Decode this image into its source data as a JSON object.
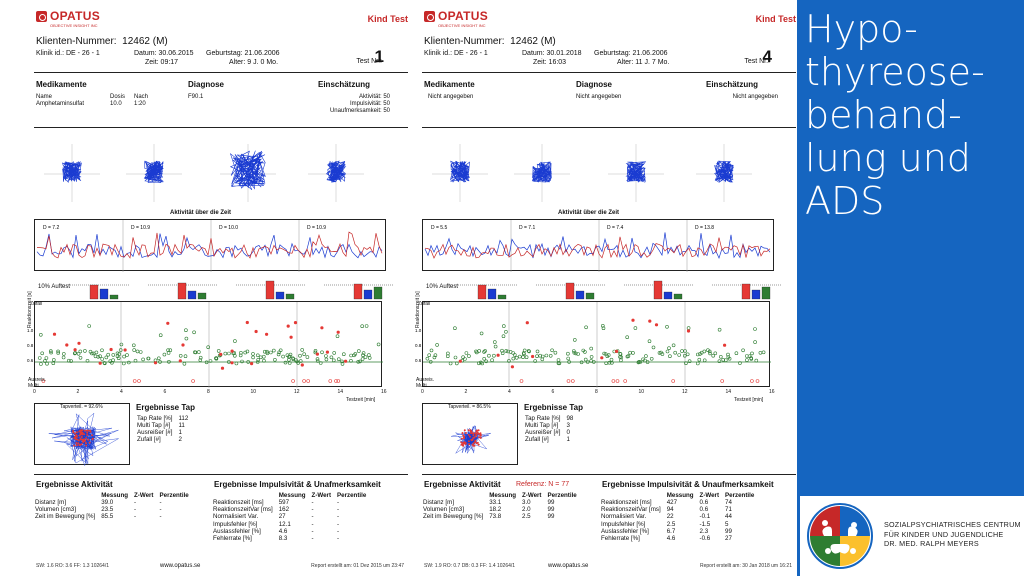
{
  "slide": {
    "title": "Hypo-\nthyreose-\nbehand-\nlung und\nADS",
    "title_lines": [
      "Hypo-",
      "thyreose-",
      "behand-",
      "lung und",
      "ADS"
    ],
    "org_lines": [
      "SOZIALPSYCHIATRISCHES CENTRUM",
      "FÜR KINDER UND JUGENDLICHE",
      "DR. MED. RALPH MEYERS"
    ],
    "accent_color": "#1565c0"
  },
  "reports": [
    {
      "brand": "OPATUS",
      "brand_sub": "OBJECTIVE INSIGHT INC",
      "kind": "Kind Test",
      "client_label": "Klienten-Nummer:",
      "client_value": "12462  (M)",
      "klinik": "Klinik id.: DE - 26 - 1",
      "datum": "Datum: 30.06.2015",
      "zeit": "Zeit: 09:17",
      "geburtstag": "Geburtstag: 21.06.2006",
      "alter": "Alter: 9 J.  0 Mo.",
      "test_nr_label": "Test Nr.:",
      "test_nr": "1",
      "med_header": "Medikamente",
      "diag_header": "Diagnose",
      "einsch_header": "Einschätzung",
      "med_cols": [
        "Name",
        "Dosis",
        "Nach"
      ],
      "med_row": [
        "Amphetaminsulfat",
        "10.0",
        "1:20"
      ],
      "diagnose": "F90.1",
      "einsch_rows": [
        "Aktivität: 50",
        "Impulsivität: 50",
        "Unaufmerksamkeit: 50"
      ],
      "activity_title": "Aktivität über die Zeit",
      "d_labels": [
        "D = 7.2",
        "D = 10.9",
        "D = 10.0",
        "D = 10.9"
      ],
      "pct_label": "10% Auftest",
      "zufall_label": "Zufall",
      "rt_axis_label": "Reaktionszeit [s]",
      "rt_ticks": [
        "1.0",
        "0.8",
        "0.6"
      ],
      "ausreis_label": "Ausreis.",
      "multi_label": "Multi",
      "time_ticks": [
        "0",
        "2",
        "4",
        "6",
        "8",
        "10",
        "12",
        "14",
        "16"
      ],
      "time_axis_label": "Testzeit [min]",
      "tap_panel_label": "Tapverteil. = 92.6%",
      "tap_title": "Ergebnisse Tap",
      "tap_rows": [
        [
          "Tap Rate [%]",
          "112"
        ],
        [
          "Multi Tap [#]",
          "11"
        ],
        [
          "Ausreißer [#]",
          "1"
        ],
        [
          "Zufall [#]",
          "2"
        ]
      ],
      "ref_label": "",
      "akt_title": "Ergebnisse Aktivität",
      "akt_cols": [
        "Messung",
        "Z-Wert",
        "Perzentile"
      ],
      "akt_rows": [
        [
          "Distanz [m]",
          "39.0",
          "-",
          "-"
        ],
        [
          "Volumen [cm3]",
          "23.5",
          "-",
          "-"
        ],
        [
          "Zeit im Bewegung [%]",
          "85.5",
          "-",
          "-"
        ]
      ],
      "imp_title": "Ergebnisse Impulsivität & Unafmerksamkeit",
      "imp_cols": [
        "Messung",
        "Z-Wert",
        "Perzentile"
      ],
      "imp_rows": [
        [
          "Reaktionszeit [ms]",
          "597",
          "-",
          "-"
        ],
        [
          "ReaktionszeitVar [ms]",
          "162",
          "-",
          "-"
        ],
        [
          "Normalisiert Var.",
          "27",
          "-",
          "-"
        ],
        [
          "Impulsfehler [%]",
          "12.1",
          "-",
          "-"
        ],
        [
          "Auslassfehler [%]",
          "4.6",
          "-",
          "-"
        ],
        [
          "Fehlerrate [%]",
          "8.3",
          "-",
          "-"
        ]
      ],
      "footer_left": "SW: 1.6   RO: 3.6   FF: 1.3   10264/1",
      "footer_url": "www.opatus.se",
      "footer_right": "Report erstellt am: 01 Dez 2015 um 23:47"
    },
    {
      "brand": "OPATUS",
      "brand_sub": "OBJECTIVE INSIGHT INC",
      "kind": "Kind Test",
      "client_label": "Klienten-Nummer:",
      "client_value": "12462  (M)",
      "klinik": "Klinik id.: DE - 26 - 1",
      "datum": "Datum: 30.01.2018",
      "zeit": "Zeit: 16:03",
      "geburtstag": "Geburtstag: 21.06.2006",
      "alter": "Alter: 11 J.  7 Mo.",
      "test_nr_label": "Test Nr.:",
      "test_nr": "4",
      "med_header": "Medikamente",
      "diag_header": "Diagnose",
      "einsch_header": "Einschätzung",
      "med_cols": [],
      "med_row": [
        "Nicht angegeben"
      ],
      "diagnose": "Nicht angegeben",
      "einsch_rows": [
        "Nicht angegeben"
      ],
      "activity_title": "Aktivität über die Zeit",
      "d_labels": [
        "D = 5.5",
        "D = 7.1",
        "D = 7.4",
        "D = 13.8"
      ],
      "pct_label": "10% Auftest",
      "zufall_label": "Zufall",
      "rt_axis_label": "Reaktionszeit [s]",
      "rt_ticks": [
        "1.0",
        "0.8",
        "0.6"
      ],
      "ausreis_label": "Ausreis.",
      "multi_label": "Multi",
      "time_ticks": [
        "0",
        "2",
        "4",
        "6",
        "8",
        "10",
        "12",
        "14",
        "16"
      ],
      "time_axis_label": "Testzeit [min]",
      "tap_panel_label": "Tapverteil. = 86.5%",
      "tap_title": "Ergebnisse Tap",
      "tap_rows": [
        [
          "Tap Rate [%]",
          "98"
        ],
        [
          "Multi Tap [#]",
          "3"
        ],
        [
          "Ausreißer [#]",
          "0"
        ],
        [
          "Zufall [#]",
          "1"
        ]
      ],
      "ref_label": "Referenz: N = 77",
      "akt_title": "Ergebnisse Aktivität",
      "akt_cols": [
        "Messung",
        "Z-Wert",
        "Perzentile"
      ],
      "akt_rows": [
        [
          "Distanz [m]",
          "33.1",
          "3.0",
          "99"
        ],
        [
          "Volumen [cm3]",
          "18.2",
          "2.0",
          "99"
        ],
        [
          "Zeit im Bewegung [%]",
          "73.8",
          "2.5",
          "99"
        ]
      ],
      "imp_title": "Ergebnisse Impulsivität & Unaufmerksamkeit",
      "imp_cols": [
        "Messung",
        "Z-Wert",
        "Perzentile"
      ],
      "imp_rows": [
        [
          "Reaktionszeit [ms]",
          "427",
          "0.6",
          "74"
        ],
        [
          "ReaktionszeitVar [ms]",
          "94",
          "0.6",
          "71"
        ],
        [
          "Normalisiert Var.",
          "22",
          "-0.1",
          "44"
        ],
        [
          "Impulsfehler [%]",
          "2.5",
          "-1.5",
          "5"
        ],
        [
          "Auslassfehler [%]",
          "6.7",
          "2.3",
          "99"
        ],
        [
          "Fehlerrate [%]",
          "4.6",
          "-0.6",
          "27"
        ]
      ],
      "footer_left": "SW: 1.9   RO: 0.7   DB: 0.3   FF: 1.4   10264/1",
      "footer_url": "www.opatus.se",
      "footer_right": "Report erstellt am: 30 Jan 2018 um 16:21"
    }
  ]
}
